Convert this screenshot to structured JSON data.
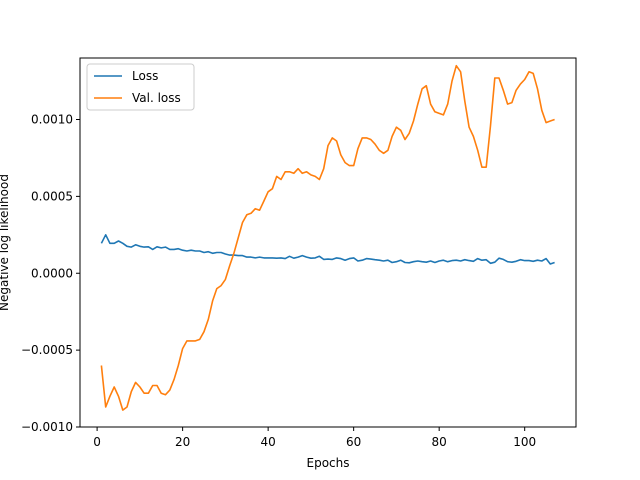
{
  "chart_data": {
    "type": "line",
    "title": "",
    "xlabel": "Epochs",
    "ylabel": "Negative log likelihood",
    "xlim": [
      -4,
      112
    ],
    "ylim": [
      -0.001,
      0.0014
    ],
    "xticks": [
      0,
      20,
      40,
      60,
      80,
      100
    ],
    "yticks": [
      -0.001,
      -0.0005,
      0.0,
      0.0005,
      0.001
    ],
    "ytick_labels": [
      "−0.0010",
      "−0.0005",
      "0.0000",
      "0.0005",
      "0.0010"
    ],
    "grid": false,
    "legend_position": "top-left",
    "series": [
      {
        "name": "Loss",
        "color": "#1f77b4",
        "x": [
          1,
          2,
          3,
          4,
          5,
          6,
          7,
          8,
          9,
          10,
          11,
          12,
          13,
          14,
          15,
          16,
          17,
          18,
          19,
          20,
          21,
          22,
          23,
          24,
          25,
          26,
          27,
          28,
          29,
          30,
          31,
          32,
          33,
          34,
          35,
          36,
          37,
          38,
          39,
          40,
          41,
          42,
          43,
          44,
          45,
          46,
          47,
          48,
          49,
          50,
          51,
          52,
          53,
          54,
          55,
          56,
          57,
          58,
          59,
          60,
          61,
          62,
          63,
          64,
          65,
          66,
          67,
          68,
          69,
          70,
          71,
          72,
          73,
          74,
          75,
          76,
          77,
          78,
          79,
          80,
          81,
          82,
          83,
          84,
          85,
          86,
          87,
          88,
          89,
          90,
          91,
          92,
          93,
          94,
          95,
          96,
          97,
          98,
          99,
          100,
          101,
          102,
          103,
          104,
          105,
          106,
          107
        ],
        "y": [
          0.000195,
          0.00025,
          0.000195,
          0.000195,
          0.00021,
          0.000195,
          0.000175,
          0.00017,
          0.000185,
          0.000175,
          0.00017,
          0.000172,
          0.000155,
          0.000172,
          0.000165,
          0.00017,
          0.000155,
          0.000155,
          0.00016,
          0.00015,
          0.000145,
          0.00015,
          0.000145,
          0.000145,
          0.000135,
          0.00014,
          0.00013,
          0.000135,
          0.000135,
          0.000125,
          0.000118,
          0.000118,
          0.000115,
          0.000115,
          0.000105,
          0.000105,
          0.0001,
          0.000105,
          0.0001,
          0.0001,
          0.0001,
          9.8e-05,
          0.0001,
          9.5e-05,
          0.00011,
          9.8e-05,
          0.000105,
          0.000115,
          0.000105,
          9.8e-05,
          0.0001,
          0.00011,
          9e-05,
          9.2e-05,
          9e-05,
          0.0001,
          9.5e-05,
          8.5e-05,
          9.5e-05,
          0.0001,
          8e-05,
          8.5e-05,
          9.5e-05,
          9.2e-05,
          8.8e-05,
          8.5e-05,
          8e-05,
          8.5e-05,
          7e-05,
          7.5e-05,
          8.5e-05,
          7e-05,
          6.8e-05,
          7.5e-05,
          8e-05,
          7.5e-05,
          7.2e-05,
          8e-05,
          7e-05,
          8e-05,
          8.5e-05,
          7.5e-05,
          8.2e-05,
          8.5e-05,
          8e-05,
          8.8e-05,
          8.2e-05,
          7.8e-05,
          9.5e-05,
          8.5e-05,
          8.8e-05,
          6.5e-05,
          7.2e-05,
          9.8e-05,
          9e-05,
          7.5e-05,
          7.2e-05,
          7.8e-05,
          8.8e-05,
          8.2e-05,
          8.2e-05,
          7.8e-05,
          8.5e-05,
          8e-05,
          9.5e-05,
          6e-05,
          7e-05
        ]
      },
      {
        "name": "Val. loss",
        "color": "#ff7f0e",
        "x": [
          1,
          2,
          3,
          4,
          5,
          6,
          7,
          8,
          9,
          10,
          11,
          12,
          13,
          14,
          15,
          16,
          17,
          18,
          19,
          20,
          21,
          22,
          23,
          24,
          25,
          26,
          27,
          28,
          29,
          30,
          31,
          32,
          33,
          34,
          35,
          36,
          37,
          38,
          39,
          40,
          41,
          42,
          43,
          44,
          45,
          46,
          47,
          48,
          49,
          50,
          51,
          52,
          53,
          54,
          55,
          56,
          57,
          58,
          59,
          60,
          61,
          62,
          63,
          64,
          65,
          66,
          67,
          68,
          69,
          70,
          71,
          72,
          73,
          74,
          75,
          76,
          77,
          78,
          79,
          80,
          81,
          82,
          83,
          84,
          85,
          86,
          87,
          88,
          89,
          90,
          91,
          92,
          93,
          94,
          95,
          96,
          97,
          98,
          99,
          100,
          101,
          102,
          103,
          104,
          105,
          106,
          107
        ],
        "y": [
          -0.0006,
          -0.00087,
          -0.0008,
          -0.00074,
          -0.0008,
          -0.00089,
          -0.00087,
          -0.00077,
          -0.00071,
          -0.00074,
          -0.00078,
          -0.00078,
          -0.00073,
          -0.00073,
          -0.00078,
          -0.00079,
          -0.00076,
          -0.00069,
          -0.0006,
          -0.00049,
          -0.00044,
          -0.00044,
          -0.00044,
          -0.00043,
          -0.00038,
          -0.0003,
          -0.00018,
          -0.0001,
          -8e-05,
          -4e-05,
          5e-05,
          0.00013,
          0.00023,
          0.00033,
          0.00038,
          0.00039,
          0.00042,
          0.00041,
          0.00047,
          0.00053,
          0.00055,
          0.00063,
          0.00061,
          0.00066,
          0.00066,
          0.00065,
          0.00068,
          0.00065,
          0.00066,
          0.00064,
          0.00063,
          0.00061,
          0.00068,
          0.00083,
          0.00088,
          0.00086,
          0.00077,
          0.00072,
          0.0007,
          0.0007,
          0.00081,
          0.00088,
          0.00088,
          0.00087,
          0.00084,
          0.0008,
          0.00078,
          0.0008,
          0.00089,
          0.00095,
          0.00093,
          0.00087,
          0.00091,
          0.00099,
          0.0011,
          0.0012,
          0.00122,
          0.0011,
          0.00105,
          0.00104,
          0.00103,
          0.0011,
          0.00125,
          0.00135,
          0.00131,
          0.00112,
          0.00095,
          0.00089,
          0.0008,
          0.00069,
          0.00069,
          0.00096,
          0.00127,
          0.00127,
          0.00119,
          0.0011,
          0.00111,
          0.00119,
          0.00123,
          0.00126,
          0.00131,
          0.0013,
          0.0012,
          0.00106,
          0.00098,
          0.00099,
          0.001
        ]
      }
    ]
  }
}
